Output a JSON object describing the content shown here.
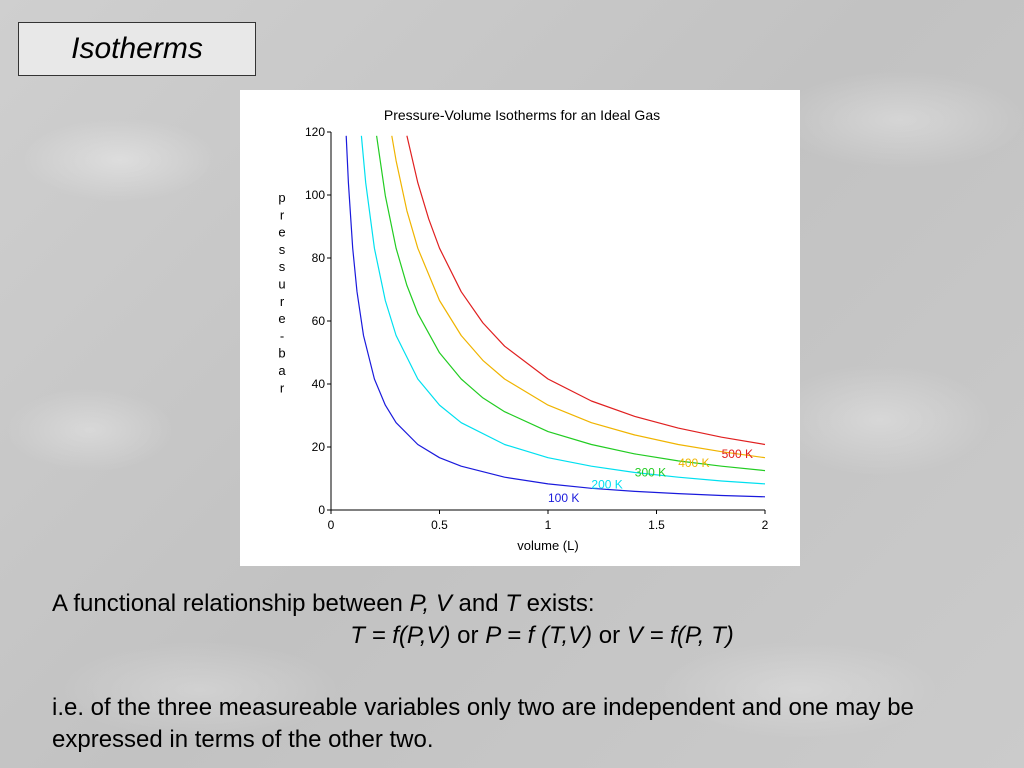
{
  "slide": {
    "title": "Isotherms",
    "text": {
      "line1": {
        "a": "A functional relationship between ",
        "pv": "P, V",
        "and": " and ",
        "t": "T",
        "rest": " exists:"
      },
      "line2": {
        "eq1": "T = f(P,V)",
        "or1": " or ",
        "eq2": "P = f (T,V)",
        "or2": " or ",
        "eq3": "V = f(P, T)"
      },
      "para2": "i.e. of the three measureable variables only two are independent and one may be expressed in terms of the other two."
    }
  },
  "chart_data": {
    "type": "line",
    "title": "Pressure-Volume Isotherms for an Ideal Gas",
    "xlabel": "volume (L)",
    "ylabel": "pressure - bar",
    "xlim": [
      0,
      2
    ],
    "ylim": [
      0,
      120
    ],
    "xticks": [
      "0",
      "0.5",
      "1",
      "1.5",
      "2"
    ],
    "yticks": [
      "0",
      "20",
      "40",
      "60",
      "80",
      "100",
      "120"
    ],
    "grid": false,
    "series": [
      {
        "name": "100 K",
        "color": "#1a1adc",
        "label_x": 1.0,
        "label_y": 2.6,
        "x": [
          0.07,
          0.08,
          0.1,
          0.12,
          0.15,
          0.2,
          0.25,
          0.3,
          0.4,
          0.5,
          0.6,
          0.8,
          1.0,
          1.2,
          1.4,
          1.6,
          1.8,
          2.0
        ],
        "y": [
          118.8,
          103.9,
          83.1,
          69.3,
          55.4,
          41.6,
          33.3,
          27.7,
          20.8,
          16.6,
          13.9,
          10.4,
          8.3,
          6.9,
          5.9,
          5.2,
          4.6,
          4.2
        ]
      },
      {
        "name": "200 K",
        "color": "#00e0f0",
        "label_x": 1.2,
        "label_y": 6.9,
        "x": [
          0.14,
          0.16,
          0.2,
          0.25,
          0.3,
          0.4,
          0.5,
          0.6,
          0.8,
          1.0,
          1.2,
          1.4,
          1.6,
          1.8,
          2.0
        ],
        "y": [
          118.8,
          103.9,
          83.1,
          66.5,
          55.4,
          41.6,
          33.3,
          27.7,
          20.8,
          16.6,
          13.9,
          11.9,
          10.4,
          9.2,
          8.3
        ]
      },
      {
        "name": "300 K",
        "color": "#22cc22",
        "label_x": 1.4,
        "label_y": 10.7,
        "x": [
          0.21,
          0.25,
          0.3,
          0.35,
          0.4,
          0.5,
          0.6,
          0.7,
          0.8,
          1.0,
          1.2,
          1.4,
          1.6,
          1.8,
          2.0
        ],
        "y": [
          118.8,
          99.8,
          83.1,
          71.3,
          62.4,
          49.9,
          41.6,
          35.6,
          31.2,
          24.9,
          20.8,
          17.8,
          15.6,
          13.9,
          12.5
        ]
      },
      {
        "name": "400 K",
        "color": "#f0b400",
        "label_x": 1.6,
        "label_y": 13.7,
        "x": [
          0.28,
          0.3,
          0.35,
          0.4,
          0.5,
          0.6,
          0.7,
          0.8,
          1.0,
          1.2,
          1.4,
          1.6,
          1.8,
          2.0
        ],
        "y": [
          118.8,
          110.9,
          95.0,
          83.1,
          66.5,
          55.4,
          47.5,
          41.6,
          33.3,
          27.7,
          23.8,
          20.8,
          18.5,
          16.6
        ]
      },
      {
        "name": "500 K",
        "color": "#e02020",
        "label_x": 1.8,
        "label_y": 16.5,
        "x": [
          0.35,
          0.4,
          0.45,
          0.5,
          0.6,
          0.7,
          0.8,
          1.0,
          1.2,
          1.4,
          1.6,
          1.8,
          2.0
        ],
        "y": [
          118.8,
          103.9,
          92.4,
          83.1,
          69.3,
          59.4,
          52.0,
          41.6,
          34.6,
          29.7,
          26.0,
          23.1,
          20.8
        ]
      }
    ]
  }
}
